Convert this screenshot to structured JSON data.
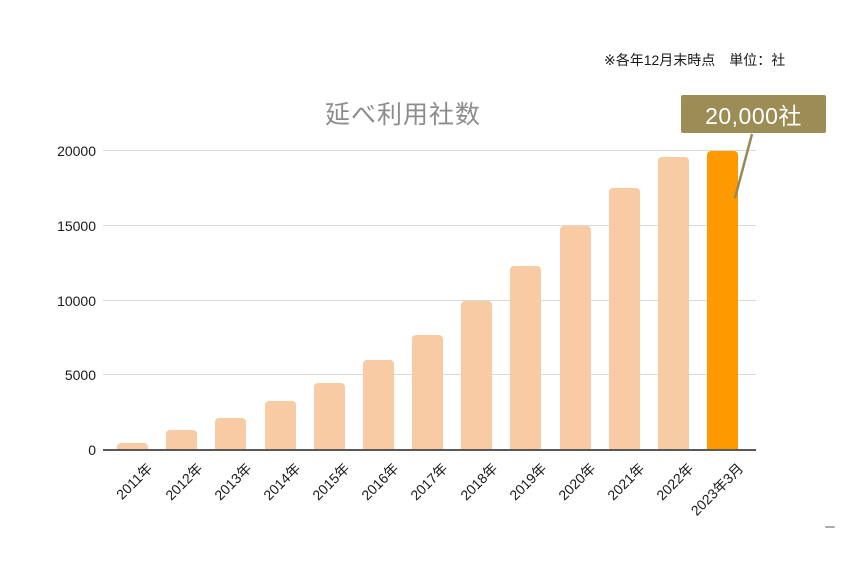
{
  "note": "※各年12月末時点　単位：社",
  "chart_data": {
    "type": "bar",
    "title": "延べ利用社数",
    "categories": [
      "2011年",
      "2012年",
      "2013年",
      "2014年",
      "2015年",
      "2016年",
      "2017年",
      "2018年",
      "2019年",
      "2020年",
      "2021年",
      "2022年",
      "2023年3月"
    ],
    "values": [
      450,
      1350,
      2150,
      3300,
      4500,
      6000,
      7700,
      10000,
      12300,
      15000,
      17500,
      19600,
      20000
    ],
    "xlabel": "",
    "ylabel": "",
    "ylim": [
      0,
      20000
    ],
    "yticks": [
      0,
      5000,
      10000,
      15000,
      20000
    ],
    "grid": true,
    "legend": "none",
    "bar_color": "#F8CBA4",
    "highlight_color": "#FF9900",
    "highlight_index": 12,
    "callout": {
      "text": "20,000社",
      "bg_color": "#9C8C55",
      "line_color": "#948A54"
    }
  },
  "colors": {
    "gridline": "#d9d9d9",
    "axis_line": "#595959",
    "title_text": "#8c8c8c",
    "tick_text": "#1a1a1a",
    "background": "#ffffff"
  }
}
